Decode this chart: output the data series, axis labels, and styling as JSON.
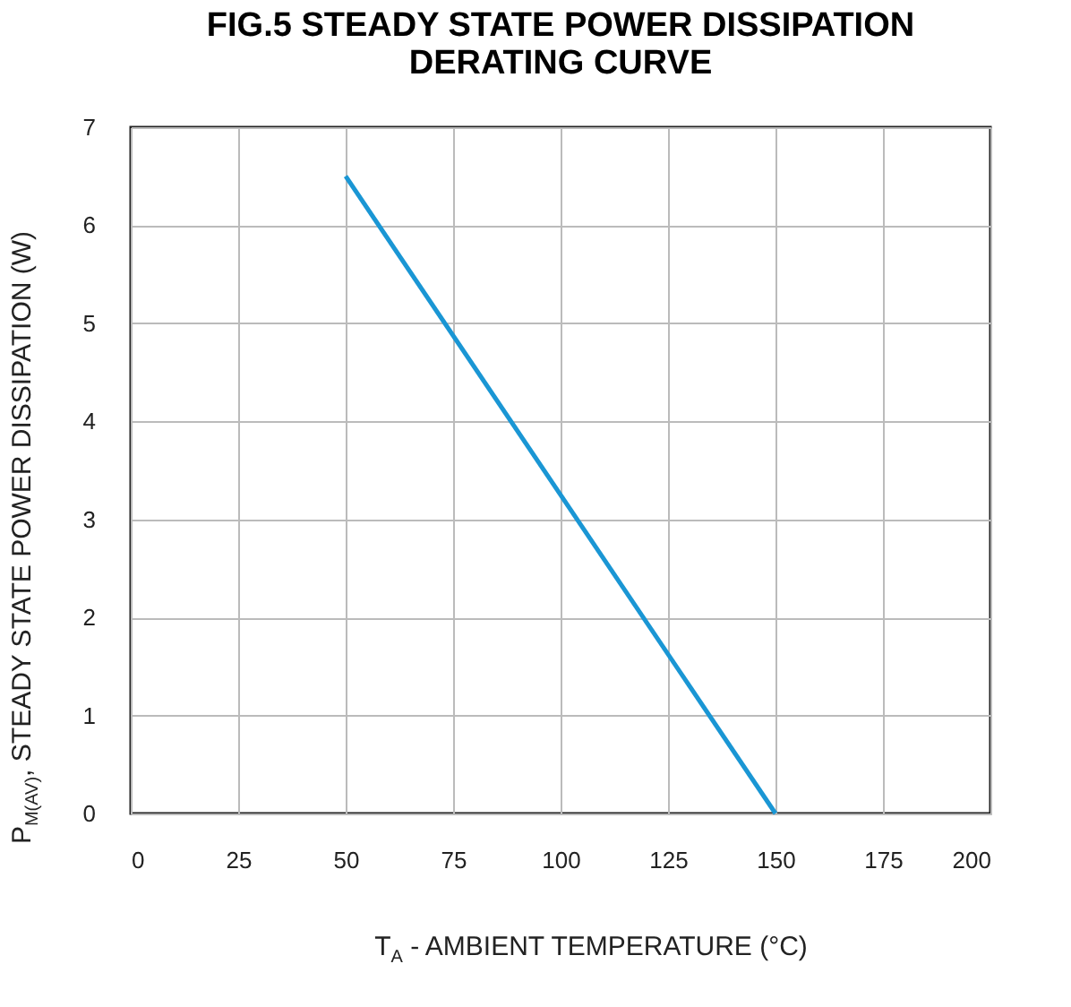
{
  "chart_data": {
    "type": "line",
    "title": [
      "FIG.5 STEADY STATE POWER DISSIPATION",
      "DERATING CURVE"
    ],
    "xlabel": "T$_{A}$ - AMBIENT TEMPERATURE  (°C)",
    "ylabel": "P$_{M(AV)}$, STEADY STATE  POWER DISSIPATION (W)",
    "x": [
      50,
      150
    ],
    "series": [
      {
        "color": "#1a96d4",
        "values": [
          6.5,
          0
        ]
      }
    ],
    "xlim": [
      0,
      200
    ],
    "xticks": [
      0,
      25,
      50,
      75,
      100,
      125,
      150,
      175,
      200
    ],
    "ylim": [
      0,
      7
    ],
    "yticks": [
      0,
      1,
      2,
      3,
      4,
      5,
      6,
      7
    ],
    "grid": true,
    "marker": "none",
    "line_style": "solid"
  }
}
